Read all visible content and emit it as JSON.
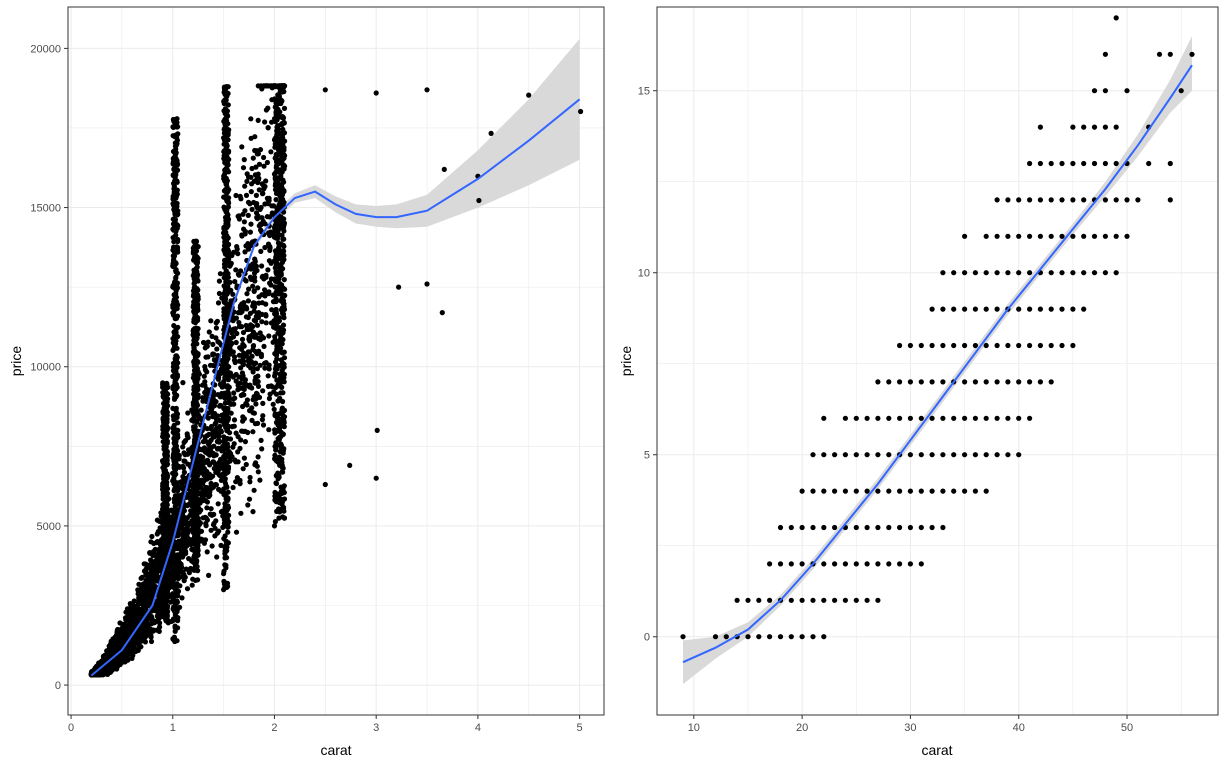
{
  "chart_data": [
    {
      "type": "scatter",
      "xlabel": "carat",
      "ylabel": "price",
      "xlim": [
        -0.03,
        5.24
      ],
      "ylim": [
        -940,
        21300
      ],
      "x_ticks": [
        0,
        1,
        2,
        3,
        4,
        5
      ],
      "y_ticks": [
        0,
        5000,
        10000,
        15000,
        20000
      ],
      "x_tick_labels": [
        "0",
        "1",
        "2",
        "3",
        "4",
        "5"
      ],
      "y_tick_labels": [
        "0",
        "5000",
        "10000",
        "15000",
        "20000"
      ],
      "grid": true,
      "point_color": "#000000",
      "smooth": {
        "color": "#3366ff",
        "ribbon_color": "#d9d9d9",
        "x": [
          0.2,
          0.5,
          0.8,
          1.0,
          1.2,
          1.4,
          1.6,
          1.8,
          2.0,
          2.2,
          2.4,
          2.6,
          2.8,
          3.0,
          3.2,
          3.5,
          4.0,
          4.5,
          5.0
        ],
        "y": [
          300,
          1100,
          2500,
          4500,
          7000,
          9500,
          12000,
          13800,
          14700,
          15300,
          15500,
          15100,
          14800,
          14700,
          14700,
          14900,
          15900,
          17100,
          18400
        ],
        "lower": [
          200,
          1000,
          2400,
          4400,
          6900,
          9400,
          11900,
          13700,
          14550,
          15150,
          15300,
          14850,
          14500,
          14400,
          14350,
          14400,
          15000,
          15700,
          16500
        ],
        "upper": [
          400,
          1200,
          2600,
          4600,
          7100,
          9600,
          12100,
          13900,
          14850,
          15450,
          15700,
          15350,
          15100,
          15050,
          15100,
          15400,
          16800,
          18400,
          20300
        ]
      },
      "points": [
        [
          0.23,
          326
        ],
        [
          0.21,
          326
        ],
        [
          0.29,
          334
        ],
        [
          0.31,
          335
        ],
        [
          0.24,
          336
        ],
        [
          0.26,
          337
        ],
        [
          0.22,
          337
        ],
        [
          0.23,
          338
        ],
        [
          0.3,
          552
        ],
        [
          0.32,
          600
        ],
        [
          0.25,
          404
        ],
        [
          0.35,
          700
        ],
        [
          0.4,
          900
        ],
        [
          0.33,
          620
        ],
        [
          0.45,
          1100
        ],
        [
          0.5,
          1500
        ],
        [
          0.55,
          1700
        ],
        [
          0.6,
          2000
        ],
        [
          0.7,
          2800
        ],
        [
          0.72,
          3000
        ],
        [
          0.75,
          3200
        ],
        [
          0.8,
          3600
        ],
        [
          0.9,
          4300
        ],
        [
          1.0,
          5200
        ],
        [
          1.01,
          6500
        ],
        [
          1.05,
          8000
        ],
        [
          1.1,
          9500
        ],
        [
          1.2,
          11000
        ],
        [
          1.01,
          16200
        ],
        [
          1.51,
          18700
        ],
        [
          2.01,
          18800
        ],
        [
          2.5,
          18700
        ],
        [
          3.0,
          18600
        ],
        [
          3.0,
          6500
        ],
        [
          3.01,
          8000
        ],
        [
          3.22,
          12500
        ],
        [
          3.5,
          18700
        ],
        [
          3.5,
          12600
        ],
        [
          3.65,
          11700
        ],
        [
          3.67,
          16200
        ],
        [
          4.0,
          15984
        ],
        [
          4.01,
          15223
        ],
        [
          4.13,
          17329
        ],
        [
          4.5,
          18531
        ],
        [
          5.01,
          18018
        ],
        [
          2.74,
          6900
        ],
        [
          2.5,
          6300
        ],
        [
          2.0,
          5000
        ],
        [
          1.5,
          3000
        ],
        [
          1.5,
          3500
        ]
      ]
    },
    {
      "type": "scatter",
      "xlabel": "carat",
      "ylabel": "price",
      "xlim": [
        6.6,
        58.4
      ],
      "ylim": [
        -2.15,
        17.3
      ],
      "x_ticks": [
        10,
        20,
        30,
        40,
        50
      ],
      "y_ticks": [
        0,
        5,
        10,
        15
      ],
      "x_tick_labels": [
        "10",
        "20",
        "30",
        "40",
        "50"
      ],
      "y_tick_labels": [
        "0",
        "5",
        "10",
        "15"
      ],
      "grid": true,
      "point_color": "#000000",
      "smooth": {
        "color": "#3366ff",
        "ribbon_color": "#d9d9d9",
        "x": [
          9,
          12,
          15,
          18,
          21,
          24,
          27,
          30,
          33,
          36,
          39,
          42,
          45,
          48,
          51,
          54,
          56
        ],
        "y": [
          -0.7,
          -0.3,
          0.2,
          1.0,
          2.0,
          3.1,
          4.2,
          5.4,
          6.6,
          7.8,
          9.0,
          10.1,
          11.2,
          12.3,
          13.5,
          14.8,
          15.7
        ],
        "lower": [
          -1.3,
          -0.6,
          0.0,
          0.85,
          1.85,
          2.95,
          4.05,
          5.25,
          6.45,
          7.65,
          8.85,
          9.95,
          11.05,
          12.1,
          13.2,
          14.4,
          15.0
        ],
        "upper": [
          -0.1,
          0.0,
          0.4,
          1.15,
          2.15,
          3.25,
          4.35,
          5.55,
          6.75,
          7.95,
          9.15,
          10.25,
          11.35,
          12.5,
          13.8,
          15.3,
          16.5
        ]
      },
      "row_segments": [
        {
          "y": 0,
          "x_from": 9,
          "x_to": 22,
          "skip": [
            10,
            11
          ]
        },
        {
          "y": 1,
          "x_from": 14,
          "x_to": 27
        },
        {
          "y": 2,
          "x_from": 17,
          "x_to": 31
        },
        {
          "y": 3,
          "x_from": 18,
          "x_to": 33
        },
        {
          "y": 4,
          "x_from": 20,
          "x_to": 37
        },
        {
          "y": 5,
          "x_from": 21,
          "x_to": 40
        },
        {
          "y": 6,
          "x_from": 22,
          "x_to": 41,
          "skip": [
            23
          ]
        },
        {
          "y": 7,
          "x_from": 27,
          "x_to": 43
        },
        {
          "y": 8,
          "x_from": 29,
          "x_to": 45
        },
        {
          "y": 9,
          "x_from": 32,
          "x_to": 46
        },
        {
          "y": 10,
          "x_from": 33,
          "x_to": 49
        },
        {
          "y": 11,
          "x_from": 35,
          "x_to": 50,
          "skip": [
            36
          ]
        },
        {
          "y": 12,
          "x_from": 38,
          "x_to": 51
        },
        {
          "y": 13,
          "x_from": 41,
          "x_to": 50
        },
        {
          "y": 14,
          "x_from": 42,
          "x_to": 49,
          "skip": [
            43,
            44
          ]
        }
      ],
      "extra_points": [
        [
          47,
          15
        ],
        [
          48,
          15
        ],
        [
          50,
          15
        ],
        [
          55,
          15
        ],
        [
          48,
          16
        ],
        [
          53,
          16
        ],
        [
          54,
          16
        ],
        [
          56,
          16
        ],
        [
          49,
          17
        ],
        [
          52,
          14
        ],
        [
          52,
          13
        ],
        [
          54,
          13
        ],
        [
          54,
          12
        ]
      ]
    }
  ]
}
